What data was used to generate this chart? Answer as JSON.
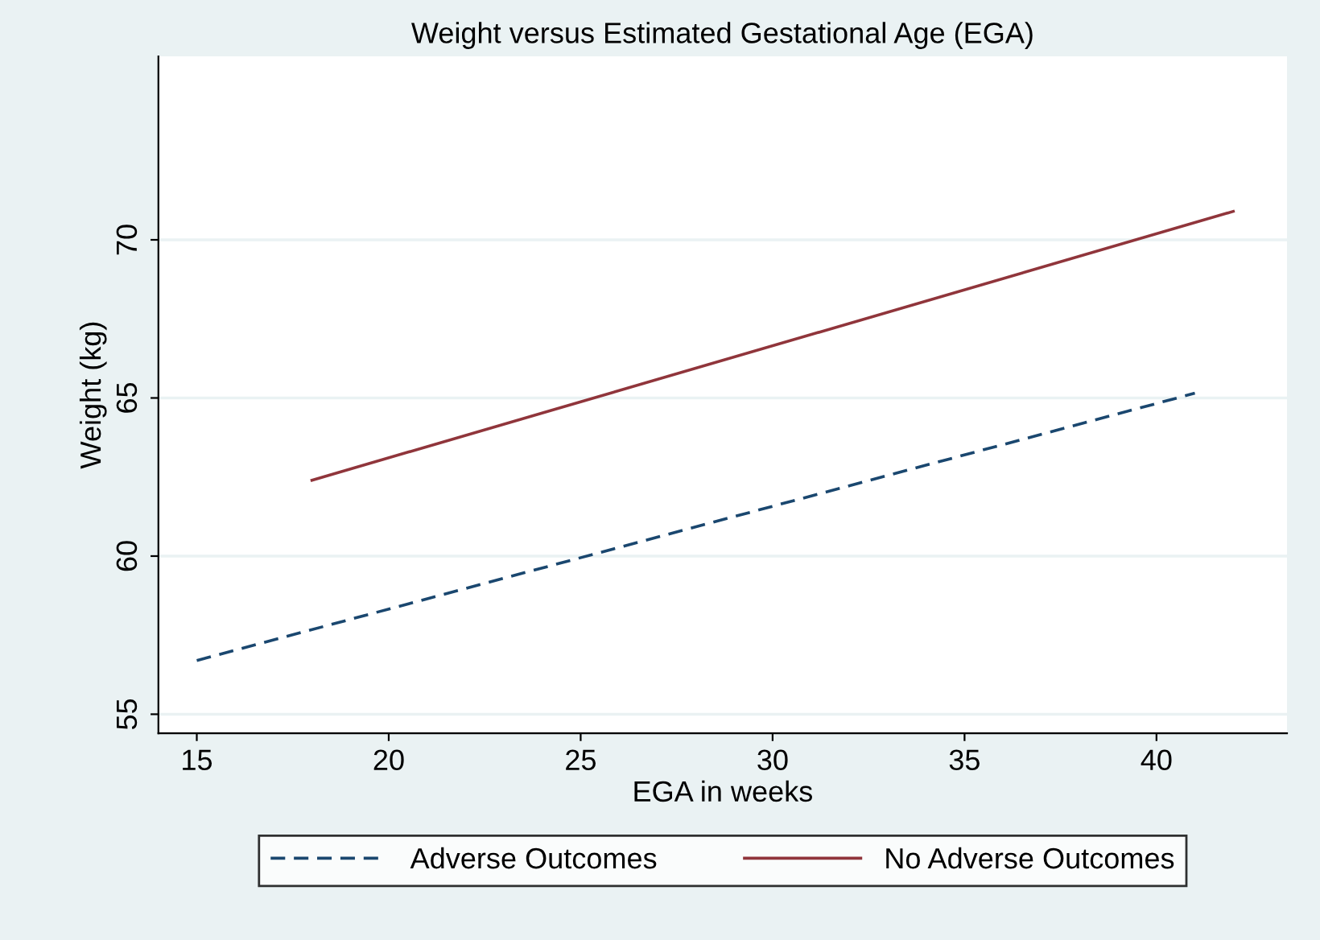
{
  "chart_data": {
    "type": "line",
    "title": "Weight versus Estimated Gestational Age (EGA)",
    "xlabel": "EGA in weeks",
    "ylabel": "Weight (kg)",
    "series": [
      {
        "name": "Adverse Outcomes",
        "color": "#1a476f",
        "x": [
          15,
          41
        ],
        "values": [
          56.7,
          65.15
        ],
        "line_style": "dashed"
      },
      {
        "name": "No Adverse Outcomes",
        "color": "#90353b",
        "x": [
          18,
          42
        ],
        "values": [
          62.4,
          70.9
        ],
        "line_style": "solid"
      }
    ],
    "xlim": [
      14,
      43.4
    ],
    "ylim": [
      54.4,
      75.8
    ],
    "xticks": [
      15,
      20,
      25,
      30,
      35,
      40
    ],
    "yticks": [
      55,
      60,
      65,
      70
    ],
    "grid": "y",
    "legend": "bottom"
  }
}
